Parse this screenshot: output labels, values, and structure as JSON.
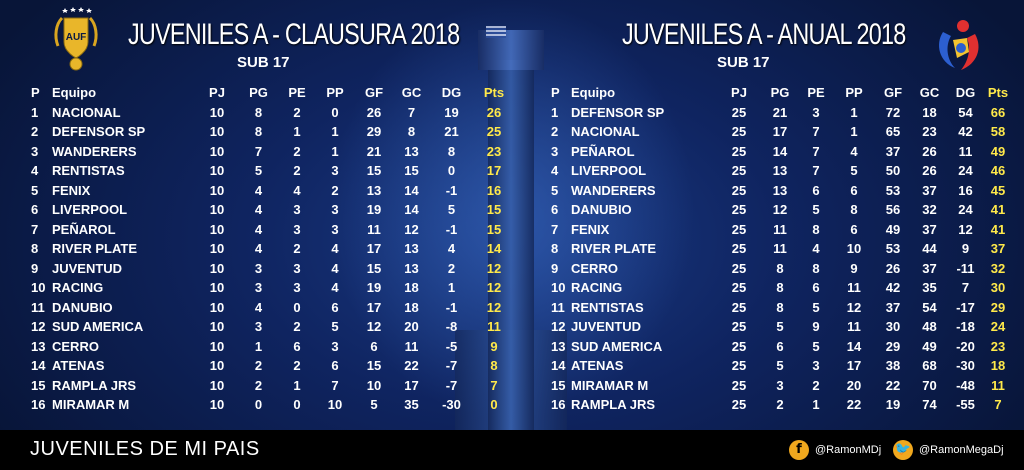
{
  "left": {
    "title": "JUVENILES A - CLAUSURA 2018",
    "subtitle": "SUB 17",
    "headers": [
      "P",
      "Equipo",
      "PJ",
      "PG",
      "PE",
      "PP",
      "GF",
      "GC",
      "DG",
      "Pts"
    ],
    "rows": [
      [
        "1",
        "NACIONAL",
        "10",
        "8",
        "2",
        "0",
        "26",
        "7",
        "19",
        "26"
      ],
      [
        "2",
        "DEFENSOR SP",
        "10",
        "8",
        "1",
        "1",
        "29",
        "8",
        "21",
        "25"
      ],
      [
        "3",
        "WANDERERS",
        "10",
        "7",
        "2",
        "1",
        "21",
        "13",
        "8",
        "23"
      ],
      [
        "4",
        "RENTISTAS",
        "10",
        "5",
        "2",
        "3",
        "15",
        "15",
        "0",
        "17"
      ],
      [
        "5",
        "FENIX",
        "10",
        "4",
        "4",
        "2",
        "13",
        "14",
        "-1",
        "16"
      ],
      [
        "6",
        "LIVERPOOL",
        "10",
        "4",
        "3",
        "3",
        "19",
        "14",
        "5",
        "15"
      ],
      [
        "7",
        "PEÑAROL",
        "10",
        "4",
        "3",
        "3",
        "11",
        "12",
        "-1",
        "15"
      ],
      [
        "8",
        "RIVER PLATE",
        "10",
        "4",
        "2",
        "4",
        "17",
        "13",
        "4",
        "14"
      ],
      [
        "9",
        "JUVENTUD",
        "10",
        "3",
        "3",
        "4",
        "15",
        "13",
        "2",
        "12"
      ],
      [
        "10",
        "RACING",
        "10",
        "3",
        "3",
        "4",
        "19",
        "18",
        "1",
        "12"
      ],
      [
        "11",
        "DANUBIO",
        "10",
        "4",
        "0",
        "6",
        "17",
        "18",
        "-1",
        "12"
      ],
      [
        "12",
        "SUD AMERICA",
        "10",
        "3",
        "2",
        "5",
        "12",
        "20",
        "-8",
        "11"
      ],
      [
        "13",
        "CERRO",
        "10",
        "1",
        "6",
        "3",
        "6",
        "11",
        "-5",
        "9"
      ],
      [
        "14",
        "ATENAS",
        "10",
        "2",
        "2",
        "6",
        "15",
        "22",
        "-7",
        "8"
      ],
      [
        "15",
        "RAMPLA JRS",
        "10",
        "2",
        "1",
        "7",
        "10",
        "17",
        "-7",
        "7"
      ],
      [
        "16",
        "MIRAMAR M",
        "10",
        "0",
        "0",
        "10",
        "5",
        "35",
        "-30",
        "0"
      ]
    ]
  },
  "right": {
    "title": "JUVENILES A - ANUAL 2018",
    "subtitle": "SUB 17",
    "headers": [
      "P",
      "Equipo",
      "PJ",
      "PG",
      "PE",
      "PP",
      "GF",
      "GC",
      "DG",
      "Pts"
    ],
    "rows": [
      [
        "1",
        "DEFENSOR SP",
        "25",
        "21",
        "3",
        "1",
        "72",
        "18",
        "54",
        "66"
      ],
      [
        "2",
        "NACIONAL",
        "25",
        "17",
        "7",
        "1",
        "65",
        "23",
        "42",
        "58"
      ],
      [
        "3",
        "PEÑAROL",
        "25",
        "14",
        "7",
        "4",
        "37",
        "26",
        "11",
        "49"
      ],
      [
        "4",
        "LIVERPOOL",
        "25",
        "13",
        "7",
        "5",
        "50",
        "26",
        "24",
        "46"
      ],
      [
        "5",
        "WANDERERS",
        "25",
        "13",
        "6",
        "6",
        "53",
        "37",
        "16",
        "45"
      ],
      [
        "6",
        "DANUBIO",
        "25",
        "12",
        "5",
        "8",
        "56",
        "32",
        "24",
        "41"
      ],
      [
        "7",
        "FENIX",
        "25",
        "11",
        "8",
        "6",
        "49",
        "37",
        "12",
        "41"
      ],
      [
        "8",
        "RIVER PLATE",
        "25",
        "11",
        "4",
        "10",
        "53",
        "44",
        "9",
        "37"
      ],
      [
        "9",
        "CERRO",
        "25",
        "8",
        "8",
        "9",
        "26",
        "37",
        "-11",
        "32"
      ],
      [
        "10",
        "RACING",
        "25",
        "8",
        "6",
        "11",
        "42",
        "35",
        "7",
        "30"
      ],
      [
        "11",
        "RENTISTAS",
        "25",
        "8",
        "5",
        "12",
        "37",
        "54",
        "-17",
        "29"
      ],
      [
        "12",
        "JUVENTUD",
        "25",
        "5",
        "9",
        "11",
        "30",
        "48",
        "-18",
        "24"
      ],
      [
        "13",
        "SUD AMERICA",
        "25",
        "6",
        "5",
        "14",
        "29",
        "49",
        "-20",
        "23"
      ],
      [
        "14",
        "ATENAS",
        "25",
        "5",
        "3",
        "17",
        "38",
        "68",
        "-30",
        "18"
      ],
      [
        "15",
        "MIRAMAR M",
        "25",
        "3",
        "2",
        "20",
        "22",
        "70",
        "-48",
        "11"
      ],
      [
        "16",
        "RAMPLA JRS",
        "25",
        "2",
        "1",
        "22",
        "19",
        "74",
        "-55",
        "7"
      ]
    ]
  },
  "logo_left": {
    "icon": "auf-shield-icon",
    "text": "AUF"
  },
  "logo_right": {
    "icon": "league-emblem-icon"
  },
  "footer": {
    "text": "JUVENILES DE MI PAIS",
    "facebook": {
      "icon": "facebook-icon",
      "glyph": "f",
      "handle": "@RamonMDj"
    },
    "twitter": {
      "icon": "twitter-icon",
      "glyph": "🐦",
      "handle": "@RamonMegaDj"
    }
  },
  "colors": {
    "points": "#ffe94a",
    "background": "#0f2460",
    "footer": "#000000",
    "social": "#f0a81e"
  }
}
